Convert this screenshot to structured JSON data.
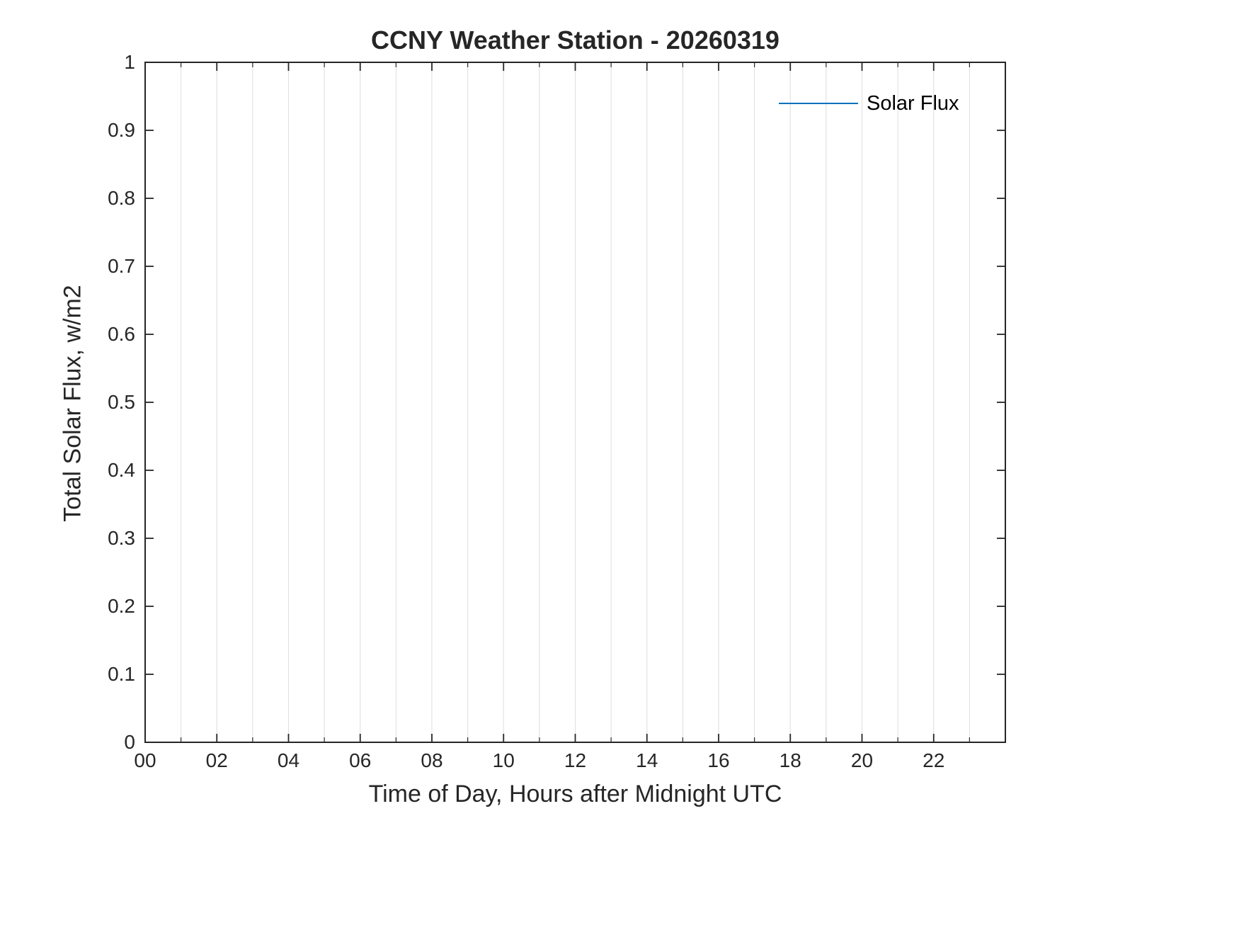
{
  "title": "CCNY Weather Station - 20260319",
  "chart_data": {
    "type": "line",
    "title": "CCNY Weather Station - 20260319",
    "xlabel": "Time of Day, Hours after Midnight UTC",
    "ylabel": "Total Solar Flux, w/m2",
    "xlim": [
      0,
      24
    ],
    "ylim": [
      0,
      1
    ],
    "x_major_ticks": [
      0,
      2,
      4,
      6,
      8,
      10,
      12,
      14,
      16,
      18,
      20,
      22
    ],
    "x_tick_labels": [
      "00",
      "02",
      "04",
      "06",
      "08",
      "10",
      "12",
      "14",
      "16",
      "18",
      "20",
      "22"
    ],
    "x_minor_ticks_every": 1,
    "y_ticks": [
      0,
      0.1,
      0.2,
      0.3,
      0.4,
      0.5,
      0.6,
      0.7,
      0.8,
      0.9,
      1
    ],
    "y_tick_labels": [
      "0",
      "0.1",
      "0.2",
      "0.3",
      "0.4",
      "0.5",
      "0.6",
      "0.7",
      "0.8",
      "0.9",
      "1"
    ],
    "grid": {
      "x": true,
      "y": false,
      "color": "#dedede"
    },
    "axis_color": "#262626",
    "legend": {
      "position": "northeast",
      "entries": [
        {
          "name": "Solar Flux",
          "color": "#0072BD"
        }
      ]
    },
    "series": [
      {
        "name": "Solar Flux",
        "color": "#0072BD",
        "x": [],
        "y": []
      }
    ]
  }
}
